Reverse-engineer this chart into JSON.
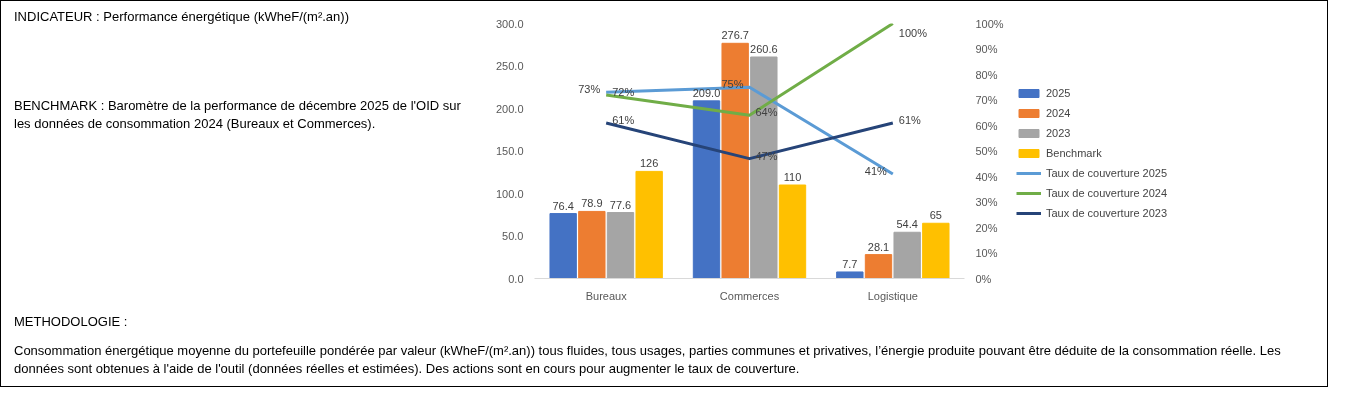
{
  "chart_data": {
    "type": "bar",
    "title": "INDICATEUR : Performance énergétique (kWheF/(m².an))",
    "annotations": [
      "BENCHMARK : Baromètre de la performance de décembre 2025 de l'OID sur les données de consommation 2024 (Bureaux et Commerces).",
      "METHODOLOGIE :",
      "Consommation énergétique moyenne du portefeuille pondérée par valeur (kWheF/(m².an)) tous fluides, tous usages, parties communes et privatives, l’énergie produite pouvant être déduite de la consommation réelle. Les données sont obtenues à l'aide de l'outil (données réelles et estimées). Des actions sont en cours pour augmenter le taux de couverture."
    ],
    "categories": [
      "Bureaux",
      "Commerces",
      "Logistique"
    ],
    "series": [
      {
        "name": "2025",
        "color": "#4472c4",
        "values": [
          76.4,
          209.0,
          7.7
        ],
        "value_labels": [
          "76.4",
          "209.0",
          "7.7"
        ]
      },
      {
        "name": "2024",
        "color": "#ed7d31",
        "values": [
          78.9,
          276.7,
          28.1
        ],
        "value_labels": [
          "78.9",
          "276.7",
          "28.1"
        ]
      },
      {
        "name": "2023",
        "color": "#a5a5a5",
        "values": [
          77.6,
          260.6,
          54.4
        ],
        "value_labels": [
          "77.6",
          "260.6",
          "54.4"
        ]
      },
      {
        "name": "Benchmark",
        "color": "#ffc000",
        "values": [
          126,
          110,
          65
        ],
        "value_labels": [
          "126",
          "110",
          "65"
        ]
      },
      {
        "name": "Taux de couverture 2025",
        "type": "line",
        "axis": "y2",
        "color": "#5b9bd5",
        "values": [
          73,
          75,
          41
        ],
        "value_labels": [
          "73%",
          "75%",
          "41%"
        ]
      },
      {
        "name": "Taux de couverture 2024",
        "type": "line",
        "axis": "y2",
        "color": "#70ad47",
        "values": [
          72,
          64,
          100
        ],
        "value_labels": [
          "72%",
          "64%",
          "100%"
        ]
      },
      {
        "name": "Taux de couverture 2023",
        "type": "line",
        "axis": "y2",
        "color": "#264478",
        "values": [
          61,
          47,
          61
        ],
        "value_labels": [
          "61%",
          "47%",
          "61%"
        ]
      }
    ],
    "ylim": [
      0,
      300
    ],
    "yticks": [
      {
        "value": 0,
        "label": "0.0"
      },
      {
        "value": 50,
        "label": "50.0"
      },
      {
        "value": 100,
        "label": "100.0"
      },
      {
        "value": 150,
        "label": "150.0"
      },
      {
        "value": 200,
        "label": "200.0"
      },
      {
        "value": 250,
        "label": "250.0"
      },
      {
        "value": 300,
        "label": "300.0"
      }
    ],
    "y2lim": [
      0,
      100
    ],
    "y2ticks": [
      {
        "value": 0,
        "label": "0%"
      },
      {
        "value": 10,
        "label": "10%"
      },
      {
        "value": 20,
        "label": "20%"
      },
      {
        "value": 30,
        "label": "30%"
      },
      {
        "value": 40,
        "label": "40%"
      },
      {
        "value": 50,
        "label": "50%"
      },
      {
        "value": 60,
        "label": "60%"
      },
      {
        "value": 70,
        "label": "70%"
      },
      {
        "value": 80,
        "label": "80%"
      },
      {
        "value": 90,
        "label": "90%"
      },
      {
        "value": 100,
        "label": "100%"
      }
    ],
    "legend": "right"
  }
}
